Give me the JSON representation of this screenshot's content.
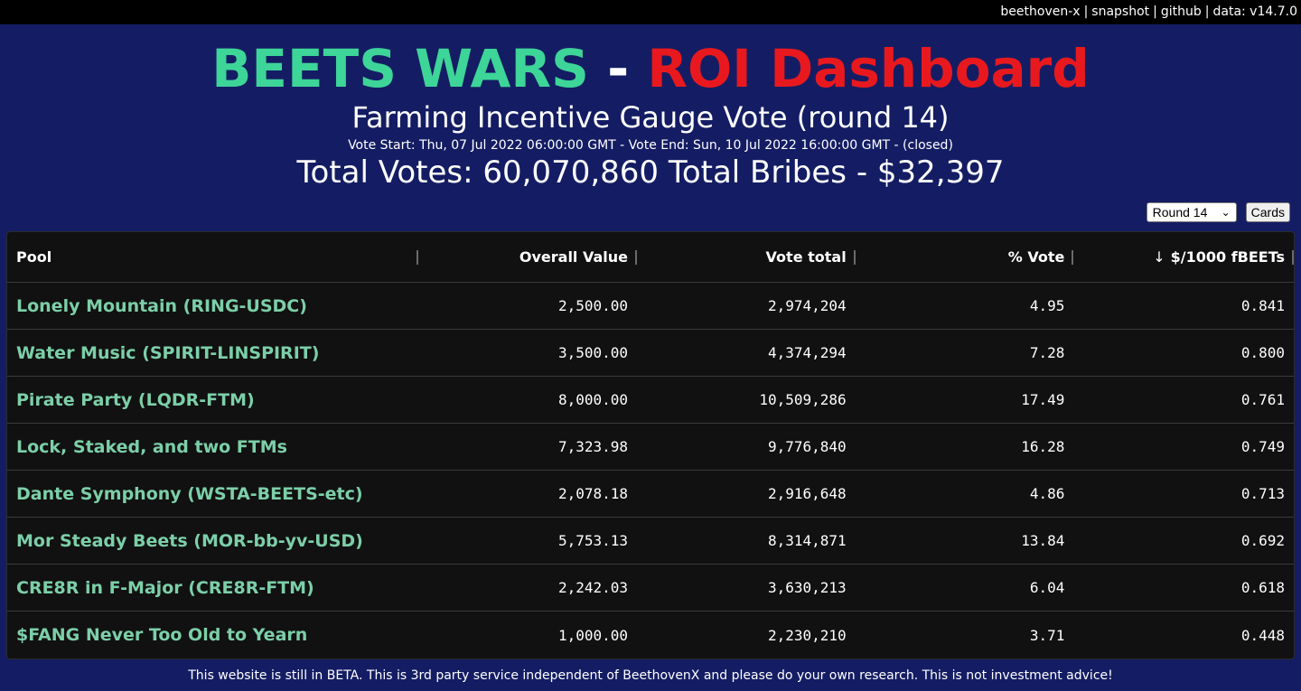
{
  "topbar": {
    "links": [
      "beethoven-x",
      "snapshot",
      "github",
      "data: v14.7.0"
    ]
  },
  "title": {
    "part1": "BEETS WARS",
    "dash": "-",
    "part2": "ROI Dashboard"
  },
  "subtitle": "Farming Incentive Gauge Vote (round 14)",
  "vote_dates": "Vote Start: Thu, 07 Jul 2022 06:00:00 GMT - Vote End: Sun, 10 Jul 2022 16:00:00 GMT - (closed)",
  "totals": "Total Votes: 60,070,860 Total Bribes - $32,397",
  "controls": {
    "round_selected": "Round 14",
    "cards_label": "Cards"
  },
  "table": {
    "headers": {
      "pool": "Pool",
      "overall_value": "Overall Value",
      "vote_total": "Vote total",
      "pct_vote": "% Vote",
      "roi": "$/1000 fBEETs",
      "sort_icon": "↓"
    },
    "rows": [
      {
        "pool": "Lonely Mountain (RING-USDC)",
        "overall_value": "2,500.00",
        "vote_total": "2,974,204",
        "pct_vote": "4.95",
        "roi": "0.841"
      },
      {
        "pool": "Water Music (SPIRIT-LINSPIRIT)",
        "overall_value": "3,500.00",
        "vote_total": "4,374,294",
        "pct_vote": "7.28",
        "roi": "0.800"
      },
      {
        "pool": "Pirate Party (LQDR-FTM)",
        "overall_value": "8,000.00",
        "vote_total": "10,509,286",
        "pct_vote": "17.49",
        "roi": "0.761"
      },
      {
        "pool": "Lock, Staked, and two FTMs",
        "overall_value": "7,323.98",
        "vote_total": "9,776,840",
        "pct_vote": "16.28",
        "roi": "0.749"
      },
      {
        "pool": "Dante Symphony (WSTA-BEETS-etc)",
        "overall_value": "2,078.18",
        "vote_total": "2,916,648",
        "pct_vote": "4.86",
        "roi": "0.713"
      },
      {
        "pool": "Mor Steady Beets (MOR-bb-yv-USD)",
        "overall_value": "5,753.13",
        "vote_total": "8,314,871",
        "pct_vote": "13.84",
        "roi": "0.692"
      },
      {
        "pool": "CRE8R in F-Major (CRE8R-FTM)",
        "overall_value": "2,242.03",
        "vote_total": "3,630,213",
        "pct_vote": "6.04",
        "roi": "0.618"
      },
      {
        "pool": "$FANG Never Too Old to Yearn",
        "overall_value": "1,000.00",
        "vote_total": "2,230,210",
        "pct_vote": "3.71",
        "roi": "0.448"
      }
    ]
  },
  "footer": "This website is still in BETA. This is 3rd party service independent of BeethovenX and please do your own research. This is not investment advice!",
  "colors": {
    "background": "#141d63",
    "title_green": "#3dd598",
    "title_red": "#e8191e",
    "pool_link": "#7ccfa8",
    "table_bg": "#111111"
  }
}
